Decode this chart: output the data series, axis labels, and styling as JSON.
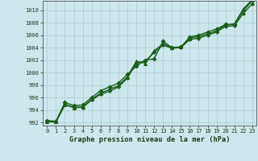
{
  "title": "Graphe pression niveau de la mer (hPa)",
  "background_color": "#cce8ec",
  "grid_color": "#aaccd0",
  "line_color": "#1a5c1a",
  "marker_color": "#1a5c1a",
  "xlim": [
    -0.5,
    23.5
  ],
  "ylim": [
    991.5,
    1011.5
  ],
  "yticks": [
    992,
    994,
    996,
    998,
    1000,
    1002,
    1004,
    1006,
    1008,
    1010
  ],
  "xticks": [
    0,
    1,
    2,
    3,
    4,
    5,
    6,
    7,
    8,
    9,
    10,
    11,
    12,
    13,
    14,
    15,
    16,
    17,
    18,
    19,
    20,
    21,
    22,
    23
  ],
  "series": [
    {
      "x": [
        0,
        1,
        2,
        3,
        4,
        5,
        6,
        7,
        8,
        9,
        10,
        11,
        12,
        13,
        14,
        15,
        16,
        17,
        18,
        19,
        20,
        21,
        22,
        23
      ],
      "y": [
        992.3,
        992.2,
        995.2,
        994.7,
        994.8,
        996.0,
        997.1,
        997.7,
        998.3,
        999.7,
        1001.0,
        1002.0,
        1002.2,
        1005.0,
        1004.0,
        1004.1,
        1005.7,
        1006.0,
        1006.5,
        1007.0,
        1007.7,
        1007.7,
        1009.9,
        1011.5
      ],
      "marker": "D",
      "markersize": 2.5,
      "linewidth": 1.0
    },
    {
      "x": [
        0,
        1,
        2,
        3,
        4,
        5,
        6,
        7,
        8,
        9,
        10,
        11,
        12,
        13,
        14,
        15,
        16,
        17,
        18,
        19,
        20,
        21,
        22,
        23
      ],
      "y": [
        992.2,
        992.1,
        994.9,
        994.4,
        994.5,
        995.7,
        996.7,
        997.3,
        997.9,
        999.3,
        1001.8,
        1001.5,
        1003.5,
        1004.6,
        1004.0,
        1004.1,
        1005.5,
        1005.8,
        1006.2,
        1006.7,
        1007.6,
        1007.8,
        1010.2,
        1011.7
      ],
      "marker": "^",
      "markersize": 3.0,
      "linewidth": 1.0
    },
    {
      "x": [
        0,
        1,
        2,
        3,
        4,
        5,
        6,
        7,
        8,
        9,
        10,
        11,
        12,
        13,
        14,
        15,
        16,
        17,
        18,
        19,
        20,
        21,
        22,
        23
      ],
      "y": [
        992.1,
        992.1,
        994.8,
        994.4,
        994.4,
        995.6,
        996.5,
        997.0,
        997.7,
        999.1,
        1001.5,
        1001.8,
        1003.2,
        1004.4,
        1003.9,
        1004.0,
        1005.3,
        1005.5,
        1006.0,
        1006.5,
        1007.4,
        1007.5,
        1009.5,
        1011.0
      ],
      "marker": "P",
      "markersize": 2.5,
      "linewidth": 1.0
    }
  ]
}
